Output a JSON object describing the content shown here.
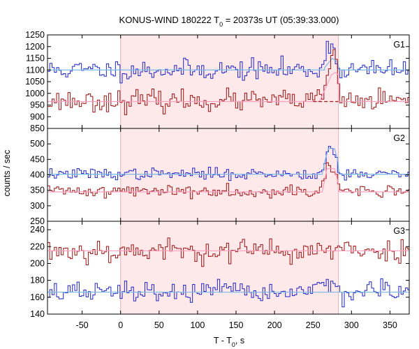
{
  "figure": {
    "title": "KONUS-WIND 180222 T",
    "title_sub": "0",
    "title_rest": " = 20373s UT (05:39:33.000)",
    "ylabel": "counts / sec",
    "xlabel": "T - T",
    "xlabel_sub": "0",
    "xlabel_rest": ", s"
  },
  "chart_data": {
    "type": "line",
    "title": "KONUS-WIND 180222 T0 = 20373s UT (05:39:33.000)",
    "xlabel": "T - T0, s",
    "ylabel": "counts / sec",
    "xlim": [
      -95,
      375
    ],
    "x_ticks": [
      -50,
      0,
      50,
      100,
      150,
      200,
      250,
      300,
      350
    ],
    "highlight_interval": [
      0,
      283
    ],
    "colors": {
      "highlight": "#fde8ea",
      "highlight_edge": "#e8b0b8",
      "blue_data": "#1f25c9",
      "blue_bg": "#7ab8e8",
      "red_data": "#a01010",
      "red_bg": "#ff9fbf"
    },
    "panels": [
      {
        "label": "G1",
        "ylim": [
          850,
          1250
        ],
        "y_ticks": [
          850,
          900,
          950,
          1000,
          1050,
          1100,
          1150,
          1200,
          1250
        ],
        "series": [
          {
            "kind": "blue",
            "bins": [
              [
                -95,
                1.0
              ],
              [
                -60,
                1.0
              ],
              [
                -20,
                1.0
              ],
              [
                20,
                1.0
              ],
              [
                60,
                1.0
              ],
              [
                100,
                1.0
              ],
              [
                140,
                1.0
              ],
              [
                180,
                1.0
              ],
              [
                220,
                1.0
              ],
              [
                258,
                1.0
              ],
              [
                262,
                1.02
              ],
              [
                267,
                1.06
              ],
              [
                272,
                1.12
              ],
              [
                277,
                1.08
              ],
              [
                282,
                1.0
              ],
              [
                300,
                1.0
              ],
              [
                375,
                1.0
              ]
            ],
            "base": 1100,
            "noise": 22,
            "seed": 11,
            "bg": [
              [
                -95,
                1100
              ],
              [
                265,
                1100
              ],
              [
                265,
                1110
              ],
              [
                270,
                1130
              ],
              [
                275,
                1150
              ],
              [
                280,
                1140
              ],
              [
                283,
                1120
              ],
              [
                284,
                1100
              ],
              [
                375,
                1100
              ]
            ]
          },
          {
            "kind": "red",
            "bins": [
              [
                -95,
                1.0
              ],
              [
                255,
                1.0
              ],
              [
                260,
                1.02
              ],
              [
                265,
                1.05
              ],
              [
                270,
                1.12
              ],
              [
                275,
                1.2
              ],
              [
                280,
                1.22
              ],
              [
                284,
                1.0
              ],
              [
                375,
                1.0
              ]
            ],
            "base": 968,
            "noise": 22,
            "seed": 23,
            "bg": [
              [
                -95,
                965
              ],
              [
                258,
                965
              ],
              [
                262,
                990
              ],
              [
                266,
                1020
              ],
              [
                270,
                1050
              ],
              [
                274,
                1080
              ],
              [
                279,
                1090
              ],
              [
                283,
                1080
              ],
              [
                284,
                965
              ],
              [
                375,
                965
              ]
            ],
            "bg_dashed_from": 250
          }
        ]
      },
      {
        "label": "G2",
        "ylim": [
          250,
          550
        ],
        "y_ticks": [
          250,
          300,
          350,
          400,
          450,
          500
        ],
        "series": [
          {
            "kind": "blue",
            "bins": [
              [
                -95,
                1.0
              ],
              [
                262,
                1.0
              ],
              [
                266,
                1.12
              ],
              [
                270,
                1.21
              ],
              [
                275,
                1.21
              ],
              [
                280,
                1.12
              ],
              [
                284,
                1.0
              ],
              [
                375,
                1.0
              ]
            ],
            "base": 403,
            "noise": 9,
            "seed": 37,
            "bg": [
              [
                -95,
                402
              ],
              [
                262,
                402
              ],
              [
                266,
                450
              ],
              [
                270,
                485
              ],
              [
                278,
                485
              ],
              [
                282,
                450
              ],
              [
                284,
                402
              ],
              [
                375,
                402
              ]
            ]
          },
          {
            "kind": "red",
            "bins": [
              [
                -95,
                1.0
              ],
              [
                260,
                1.0
              ],
              [
                264,
                1.1
              ],
              [
                268,
                1.22
              ],
              [
                276,
                1.22
              ],
              [
                281,
                1.08
              ],
              [
                284,
                1.0
              ],
              [
                375,
                1.0
              ]
            ],
            "base": 348,
            "noise": 10,
            "seed": 41,
            "bg": [
              [
                -95,
                345
              ],
              [
                262,
                345
              ],
              [
                265,
                380
              ],
              [
                268,
                420
              ],
              [
                278,
                420
              ],
              [
                282,
                380
              ],
              [
                284,
                345
              ],
              [
                375,
                345
              ]
            ]
          }
        ]
      },
      {
        "label": "G3",
        "ylim": [
          140,
          250
        ],
        "y_ticks": [
          140,
          160,
          180,
          200,
          220,
          240
        ],
        "series": [
          {
            "kind": "red",
            "bins": [
              [
                -95,
                1.0
              ],
              [
                375,
                1.0
              ]
            ],
            "base": 215,
            "noise": 7,
            "seed": 53,
            "bg": [
              [
                -95,
                215
              ],
              [
                375,
                215
              ]
            ]
          },
          {
            "kind": "blue",
            "bins": [
              [
                -95,
                1.0
              ],
              [
                240,
                1.0
              ],
              [
                255,
                1.04
              ],
              [
                270,
                1.06
              ],
              [
                282,
                1.05
              ],
              [
                284,
                1.0
              ],
              [
                375,
                1.0
              ]
            ],
            "base": 166,
            "noise": 6,
            "seed": 67,
            "bg": [
              [
                -95,
                166
              ],
              [
                375,
                166
              ]
            ]
          }
        ]
      }
    ]
  }
}
